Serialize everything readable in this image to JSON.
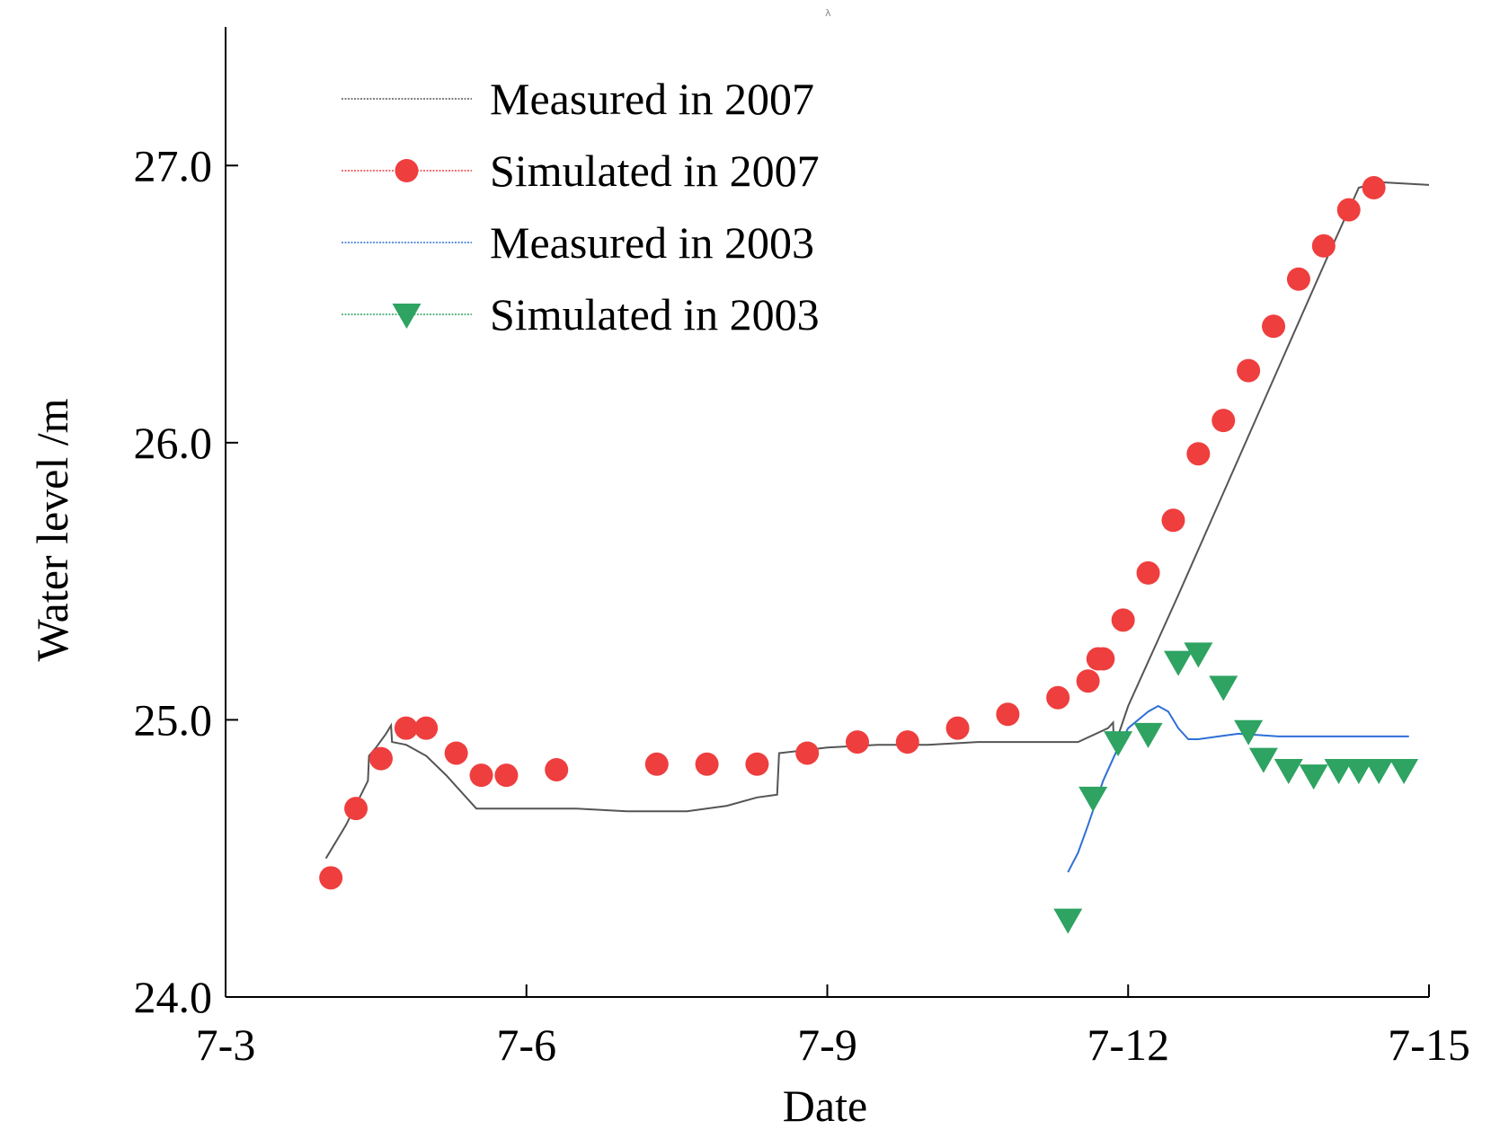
{
  "chart_data": {
    "type": "line",
    "title": "",
    "xlabel": "Date",
    "ylabel": "Water level /m",
    "xlim": [
      0,
      12
    ],
    "ylim": [
      24.0,
      27.5
    ],
    "x_ticks": [
      {
        "value": 0,
        "label": "7-3"
      },
      {
        "value": 3,
        "label": "7-6"
      },
      {
        "value": 6,
        "label": "7-9"
      },
      {
        "value": 9,
        "label": "7-12"
      },
      {
        "value": 12,
        "label": "7-15"
      }
    ],
    "y_ticks": [
      {
        "value": 24.0,
        "label": "24.0"
      },
      {
        "value": 25.0,
        "label": "25.0"
      },
      {
        "value": 26.0,
        "label": "26.0"
      },
      {
        "value": 27.0,
        "label": "27.0"
      }
    ],
    "legend_position": "top-left",
    "series": [
      {
        "name": "Measured in 2007",
        "style": "line",
        "color": "#555555",
        "x": [
          1.0,
          1.2,
          1.42,
          1.43,
          1.5,
          1.6,
          1.65,
          1.66,
          1.8,
          2.0,
          2.2,
          2.4,
          2.5,
          3.0,
          3.5,
          4.0,
          4.6,
          5.0,
          5.3,
          5.5,
          5.52,
          6.0,
          6.5,
          7.0,
          7.5,
          8.0,
          8.5,
          8.8,
          8.85,
          8.86,
          9.0,
          9.5,
          10.0,
          10.5,
          11.0,
          11.3,
          11.5,
          12.0
        ],
        "y": [
          24.5,
          24.62,
          24.78,
          24.87,
          24.9,
          24.95,
          24.98,
          24.92,
          24.91,
          24.87,
          24.8,
          24.72,
          24.68,
          24.68,
          24.68,
          24.67,
          24.67,
          24.69,
          24.72,
          24.73,
          24.88,
          24.9,
          24.91,
          24.91,
          24.92,
          24.92,
          24.92,
          24.97,
          24.99,
          24.9,
          25.05,
          25.45,
          25.86,
          26.27,
          26.68,
          26.92,
          26.94,
          26.93
        ]
      },
      {
        "name": "Simulated in 2007",
        "style": "marker",
        "marker": "circle",
        "color": "#ef3e3e",
        "x": [
          1.05,
          1.3,
          1.55,
          1.8,
          2.0,
          2.3,
          2.55,
          2.8,
          3.3,
          4.3,
          4.8,
          5.3,
          5.8,
          6.3,
          6.8,
          7.3,
          7.8,
          8.3,
          8.6,
          8.7,
          8.75,
          8.95,
          9.2,
          9.45,
          9.7,
          9.95,
          10.2,
          10.45,
          10.7,
          10.95,
          11.2,
          11.45
        ],
        "y": [
          24.43,
          24.68,
          24.86,
          24.97,
          24.97,
          24.88,
          24.8,
          24.8,
          24.82,
          24.84,
          24.84,
          24.84,
          24.88,
          24.92,
          24.92,
          24.97,
          25.02,
          25.08,
          25.14,
          25.22,
          25.22,
          25.36,
          25.53,
          25.72,
          25.96,
          26.08,
          26.26,
          26.42,
          26.59,
          26.71,
          26.84,
          26.92
        ]
      },
      {
        "name": "Measured in 2003",
        "style": "line",
        "color": "#2f6fd6",
        "x": [
          8.4,
          8.5,
          8.6,
          8.75,
          8.9,
          9.0,
          9.2,
          9.3,
          9.4,
          9.5,
          9.6,
          9.7,
          9.9,
          10.1,
          10.5,
          11.0,
          11.5,
          11.8
        ],
        "y": [
          24.45,
          24.52,
          24.62,
          24.78,
          24.9,
          24.97,
          25.03,
          25.05,
          25.03,
          24.97,
          24.93,
          24.93,
          24.94,
          24.95,
          24.94,
          24.94,
          24.94,
          24.94
        ]
      },
      {
        "name": "Simulated in 2003",
        "style": "marker",
        "marker": "triangle-down",
        "color": "#2ea362",
        "x": [
          8.4,
          8.65,
          8.9,
          9.2,
          9.5,
          9.7,
          9.95,
          10.2,
          10.35,
          10.6,
          10.85,
          11.1,
          11.3,
          11.5,
          11.75
        ],
        "y": [
          24.28,
          24.72,
          24.92,
          24.95,
          25.21,
          25.24,
          25.12,
          24.96,
          24.86,
          24.82,
          24.8,
          24.82,
          24.82,
          24.82,
          24.82
        ]
      }
    ],
    "annotations": [
      "λ"
    ]
  }
}
